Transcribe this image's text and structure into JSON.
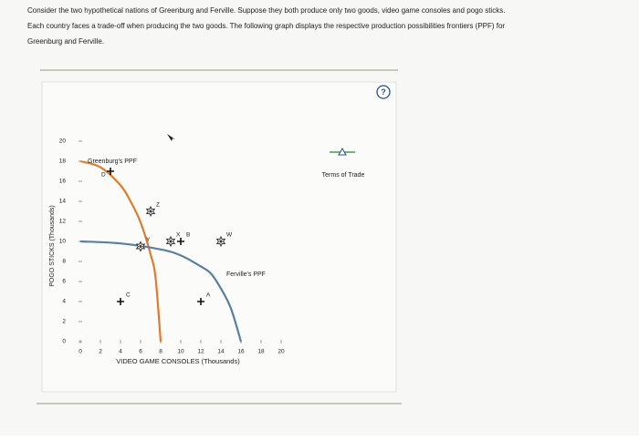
{
  "question": [
    "Consider the two hypothetical nations of Greenburg and Ferville. Suppose they both produce only two goods, video game consoles and pogo sticks.",
    "Each country faces a trade-off when producing the two goods. The following graph displays the respective production possibilities frontiers (PPF) for",
    "Greenburg and Ferville."
  ],
  "help_icon": "?",
  "chart_data": {
    "type": "line",
    "x_label": "VIDEO GAME CONSOLES (Thousands)",
    "y_label": "POGO STICKS (Thousands)",
    "xlim": [
      0,
      20
    ],
    "ylim": [
      0,
      20
    ],
    "xticks": [
      0,
      2,
      4,
      6,
      8,
      10,
      12,
      14,
      16,
      18,
      20
    ],
    "yticks": [
      0,
      2,
      4,
      6,
      8,
      10,
      12,
      14,
      16,
      18,
      20
    ],
    "series": [
      {
        "name": "Greenburg's PPF",
        "color": "#e07b2a",
        "x": [
          0,
          2,
          4,
          5,
          6,
          7,
          7.5,
          8
        ],
        "values": [
          18,
          17.4,
          15.6,
          14,
          11.9,
          8.7,
          6.3,
          0
        ]
      },
      {
        "name": "Ferville's PPF",
        "color": "#5a7fa0",
        "x": [
          0,
          4,
          8,
          10,
          12,
          13,
          14,
          15,
          16
        ],
        "values": [
          10,
          9.8,
          9.2,
          8.6,
          7.5,
          6.8,
          5.3,
          3.3,
          0
        ]
      }
    ],
    "points": [
      {
        "label": "D",
        "marker": "plus",
        "x": 3,
        "y": 17
      },
      {
        "label": "Z",
        "marker": "star",
        "x": 7,
        "y": 13
      },
      {
        "label": "Y",
        "marker": "star",
        "x": 6,
        "y": 9.5
      },
      {
        "label": "X",
        "marker": "star",
        "x": 9,
        "y": 10
      },
      {
        "label": "B",
        "marker": "plus",
        "x": 10,
        "y": 10
      },
      {
        "label": "W",
        "marker": "star",
        "x": 14,
        "y": 10
      },
      {
        "label": "C",
        "marker": "plus",
        "x": 4,
        "y": 4
      },
      {
        "label": "A",
        "marker": "plus",
        "x": 12,
        "y": 4
      }
    ],
    "tool_legend": {
      "label": "Terms of Trade",
      "color": "#3aa54a"
    }
  }
}
